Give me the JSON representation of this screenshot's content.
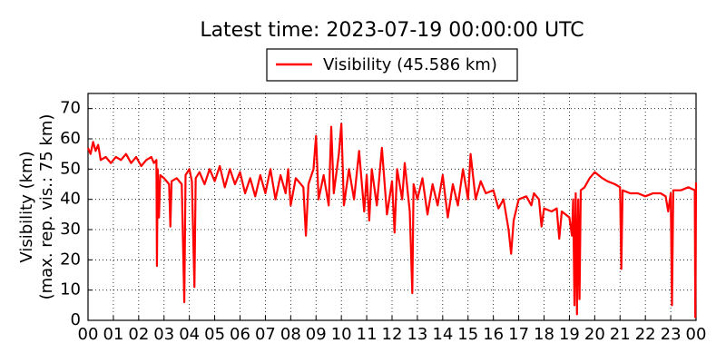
{
  "chart_data": {
    "type": "line",
    "title": "Latest time: 2023-07-19 00:00:00 UTC",
    "ylabel": [
      "Visibility (km)",
      "(max. rep. vis.: 75 km)"
    ],
    "xlim": [
      0,
      24
    ],
    "ylim": [
      0,
      75
    ],
    "yticks": [
      0,
      10,
      20,
      30,
      40,
      50,
      60,
      70
    ],
    "xticks": [
      {
        "value": 0,
        "label": "00"
      },
      {
        "value": 1,
        "label": "01"
      },
      {
        "value": 2,
        "label": "02"
      },
      {
        "value": 3,
        "label": "03"
      },
      {
        "value": 4,
        "label": "04"
      },
      {
        "value": 5,
        "label": "05"
      },
      {
        "value": 6,
        "label": "06"
      },
      {
        "value": 7,
        "label": "07"
      },
      {
        "value": 8,
        "label": "08"
      },
      {
        "value": 9,
        "label": "09"
      },
      {
        "value": 10,
        "label": "10"
      },
      {
        "value": 11,
        "label": "11"
      },
      {
        "value": 12,
        "label": "12"
      },
      {
        "value": 13,
        "label": "13"
      },
      {
        "value": 14,
        "label": "14"
      },
      {
        "value": 15,
        "label": "15"
      },
      {
        "value": 16,
        "label": "16"
      },
      {
        "value": 17,
        "label": "17"
      },
      {
        "value": 18,
        "label": "18"
      },
      {
        "value": 19,
        "label": "19"
      },
      {
        "value": 20,
        "label": "20"
      },
      {
        "value": 21,
        "label": "21"
      },
      {
        "value": 22,
        "label": "22"
      },
      {
        "value": 23,
        "label": "23"
      },
      {
        "value": 24,
        "label": "00"
      }
    ],
    "grid": true,
    "legend": "top",
    "x": [
      0,
      0.1,
      0.2,
      0.3,
      0.4,
      0.5,
      0.7,
      0.9,
      1.1,
      1.3,
      1.5,
      1.7,
      1.9,
      2.1,
      2.3,
      2.5,
      2.6,
      2.7,
      2.72,
      2.75,
      2.8,
      2.85,
      3.0,
      3.2,
      3.25,
      3.3,
      3.5,
      3.7,
      3.8,
      3.85,
      4.0,
      4.1,
      4.2,
      4.25,
      4.4,
      4.6,
      4.8,
      5.0,
      5.2,
      5.4,
      5.6,
      5.8,
      6.0,
      6.2,
      6.4,
      6.6,
      6.8,
      7.0,
      7.2,
      7.4,
      7.6,
      7.8,
      7.9,
      8.0,
      8.2,
      8.5,
      8.6,
      8.7,
      8.9,
      9.0,
      9.1,
      9.3,
      9.5,
      9.6,
      9.7,
      9.9,
      10.0,
      10.1,
      10.3,
      10.5,
      10.7,
      10.9,
      11.0,
      11.1,
      11.2,
      11.4,
      11.6,
      11.8,
      12.0,
      12.1,
      12.2,
      12.4,
      12.5,
      12.7,
      12.8,
      12.85,
      13.0,
      13.2,
      13.4,
      13.6,
      13.8,
      14.0,
      14.2,
      14.4,
      14.6,
      14.8,
      15.0,
      15.1,
      15.3,
      15.5,
      15.7,
      16.0,
      16.2,
      16.4,
      16.6,
      16.7,
      16.8,
      17.0,
      17.3,
      17.5,
      17.6,
      17.8,
      17.9,
      18.0,
      18.3,
      18.5,
      18.6,
      18.7,
      19.0,
      19.1,
      19.15,
      19.2,
      19.25,
      19.3,
      19.35,
      19.4,
      19.45,
      19.6,
      19.8,
      20.0,
      20.3,
      20.5,
      20.8,
      21.0,
      21.05,
      21.1,
      21.4,
      21.7,
      22.0,
      22.3,
      22.6,
      22.8,
      22.9,
      23.0,
      23.05,
      23.1,
      23.4,
      23.7,
      23.95,
      23.97,
      24
    ],
    "series": [
      {
        "name": "Visibility (45.586 km)",
        "color": "#ff0000",
        "values": [
          57,
          55,
          59,
          56,
          58,
          53,
          54,
          52,
          54,
          53,
          55,
          52,
          54,
          51,
          53,
          54,
          52,
          53,
          18,
          50,
          34,
          48,
          47,
          45,
          31,
          46,
          47,
          45,
          6,
          48,
          50,
          46,
          11,
          47,
          49,
          45,
          50,
          46,
          51,
          44,
          50,
          45,
          49,
          42,
          47,
          41,
          48,
          42,
          50,
          40,
          48,
          42,
          50,
          38,
          47,
          44,
          28,
          45,
          50,
          61,
          40,
          48,
          38,
          64,
          42,
          55,
          65,
          38,
          50,
          40,
          56,
          36,
          48,
          33,
          50,
          38,
          57,
          35,
          46,
          29,
          50,
          40,
          52,
          36,
          9,
          45,
          40,
          47,
          35,
          45,
          38,
          48,
          34,
          45,
          38,
          50,
          40,
          55,
          40,
          46,
          42,
          43,
          37,
          40,
          30,
          22,
          33,
          40,
          41,
          38,
          42,
          40,
          31,
          37,
          36,
          37,
          27,
          36,
          34,
          28,
          40,
          5,
          42,
          2,
          40,
          7,
          43,
          44,
          47,
          49,
          47,
          46,
          45,
          44,
          17,
          43,
          42,
          42,
          41,
          42,
          42,
          41,
          36,
          42,
          5,
          43,
          43,
          44,
          43,
          1,
          45.6
        ]
      }
    ]
  }
}
